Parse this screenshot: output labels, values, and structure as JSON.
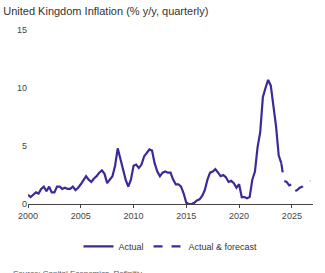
{
  "chart_data": {
    "type": "line",
    "title": "United Kingdom Inflation (% y/y, quarterly)",
    "source": "Source: Capital Economics, Refinitiv.",
    "x": [
      2000.0,
      2000.25,
      2000.5,
      2000.75,
      2001.0,
      2001.25,
      2001.5,
      2001.75,
      2002.0,
      2002.25,
      2002.5,
      2002.75,
      2003.0,
      2003.25,
      2003.5,
      2003.75,
      2004.0,
      2004.25,
      2004.5,
      2004.75,
      2005.0,
      2005.25,
      2005.5,
      2005.75,
      2006.0,
      2006.25,
      2006.5,
      2006.75,
      2007.0,
      2007.25,
      2007.5,
      2007.75,
      2008.0,
      2008.25,
      2008.5,
      2008.75,
      2009.0,
      2009.25,
      2009.5,
      2009.75,
      2010.0,
      2010.25,
      2010.5,
      2010.75,
      2011.0,
      2011.25,
      2011.5,
      2011.75,
      2012.0,
      2012.25,
      2012.5,
      2012.75,
      2013.0,
      2013.25,
      2013.5,
      2013.75,
      2014.0,
      2014.25,
      2014.5,
      2014.75,
      2015.0,
      2015.25,
      2015.5,
      2015.75,
      2016.0,
      2016.25,
      2016.5,
      2016.75,
      2017.0,
      2017.25,
      2017.5,
      2017.75,
      2018.0,
      2018.25,
      2018.5,
      2018.75,
      2019.0,
      2019.25,
      2019.5,
      2019.75,
      2020.0,
      2020.25,
      2020.5,
      2020.75,
      2021.0,
      2021.25,
      2021.5,
      2021.75,
      2022.0,
      2022.25,
      2022.5,
      2022.75,
      2023.0,
      2023.25,
      2023.5,
      2023.75,
      2024.0,
      2024.25,
      2024.5,
      2024.75,
      2025.0,
      2025.25,
      2025.5,
      2025.75,
      2026.0,
      2026.25,
      2026.5,
      2026.75
    ],
    "series": [
      {
        "name": "Actual",
        "color": "#3b2a98",
        "line_style": "solid",
        "values": [
          0.8,
          0.6,
          0.8,
          1.0,
          0.9,
          1.3,
          1.5,
          1.1,
          1.5,
          1.0,
          1.0,
          1.5,
          1.5,
          1.3,
          1.4,
          1.3,
          1.3,
          1.5,
          1.2,
          1.4,
          1.7,
          2.0,
          2.4,
          2.1,
          1.9,
          2.2,
          2.4,
          2.7,
          2.9,
          2.6,
          1.8,
          2.1,
          2.4,
          3.3,
          4.8,
          3.9,
          3.0,
          2.1,
          1.5,
          2.1,
          3.3,
          3.4,
          3.1,
          3.4,
          4.1,
          4.4,
          4.7,
          4.6,
          3.5,
          2.8,
          2.4,
          2.7,
          2.8,
          2.7,
          2.7,
          2.1,
          1.7,
          1.7,
          1.5,
          0.9,
          0.1,
          0.0,
          0.0,
          0.1,
          0.3,
          0.4,
          0.7,
          1.2,
          2.1,
          2.7,
          2.8,
          3.0,
          2.7,
          2.4,
          2.5,
          2.3,
          1.9,
          2.0,
          1.8,
          1.4,
          1.7,
          0.6,
          0.6,
          0.5,
          0.6,
          2.1,
          2.8,
          4.9,
          6.2,
          9.2,
          10.0,
          10.7,
          10.2,
          8.4,
          6.7,
          4.2,
          3.5,
          null,
          null,
          null,
          null,
          null,
          null,
          null,
          null,
          null,
          null,
          null
        ]
      },
      {
        "name": "Actual & forecast",
        "color": "#3b2a98",
        "line_style": "dash",
        "values": [
          null,
          null,
          null,
          null,
          null,
          null,
          null,
          null,
          null,
          null,
          null,
          null,
          null,
          null,
          null,
          null,
          null,
          null,
          null,
          null,
          null,
          null,
          null,
          null,
          null,
          null,
          null,
          null,
          null,
          null,
          null,
          null,
          null,
          null,
          null,
          null,
          null,
          null,
          null,
          null,
          null,
          null,
          null,
          null,
          null,
          null,
          null,
          null,
          null,
          null,
          null,
          null,
          null,
          null,
          null,
          null,
          null,
          null,
          null,
          null,
          null,
          null,
          null,
          null,
          null,
          null,
          null,
          null,
          null,
          null,
          null,
          null,
          null,
          null,
          null,
          null,
          null,
          null,
          null,
          null,
          null,
          null,
          null,
          null,
          null,
          null,
          null,
          null,
          null,
          null,
          null,
          null,
          null,
          null,
          null,
          null,
          3.5,
          2.0,
          1.9,
          1.6,
          1.7,
          1.1,
          1.2,
          1.4,
          1.5,
          1.7,
          1.8,
          2.0
        ]
      }
    ],
    "xlim": [
      2000,
      2027
    ],
    "xticks": [
      2000,
      2005,
      2010,
      2015,
      2020,
      2025
    ],
    "ylim": [
      0,
      15
    ],
    "yticks": [
      0,
      5,
      10,
      15
    ],
    "grid": false,
    "legend": "bottom"
  }
}
